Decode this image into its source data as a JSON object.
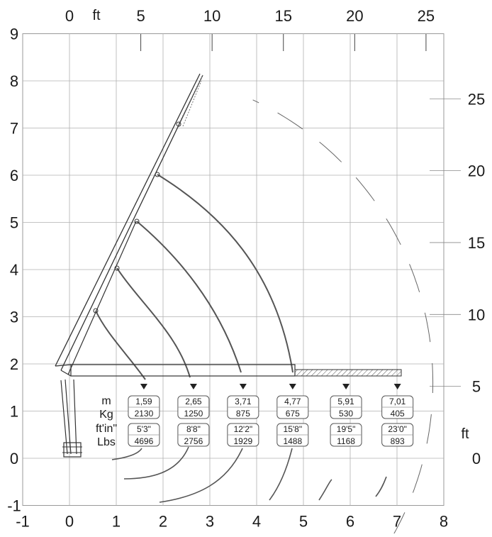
{
  "axes": {
    "x_m_ticks": [
      -1,
      0,
      1,
      2,
      3,
      4,
      5,
      6,
      7,
      8
    ],
    "y_m_ticks": [
      -1,
      0,
      1,
      2,
      3,
      4,
      5,
      6,
      7,
      8,
      9
    ],
    "x_ft_ticks": [
      0,
      5,
      10,
      15,
      20,
      25
    ],
    "y_ft_ticks": [
      0,
      5,
      10,
      15,
      20,
      25
    ],
    "x_ft_unit": "ft",
    "y_ft_unit": "ft"
  },
  "row_labels": [
    "m",
    "Kg",
    "ft'in\"",
    "Lbs"
  ],
  "loads": [
    {
      "reach_m": "1,59",
      "kg": "2130",
      "reach_ftin": "5'3\"",
      "lbs": "4696"
    },
    {
      "reach_m": "2,65",
      "kg": "1250",
      "reach_ftin": "8'8\"",
      "lbs": "2756"
    },
    {
      "reach_m": "3,71",
      "kg": "875",
      "reach_ftin": "12'2\"",
      "lbs": "1929"
    },
    {
      "reach_m": "4,77",
      "kg": "675",
      "reach_ftin": "15'8\"",
      "lbs": "1488"
    },
    {
      "reach_m": "5,91",
      "kg": "530",
      "reach_ftin": "19'5\"",
      "lbs": "1168"
    },
    {
      "reach_m": "7,01",
      "kg": "405",
      "reach_ftin": "23'0\"",
      "lbs": "893"
    }
  ],
  "colors": {
    "grid": "#b0b0b0",
    "line": "#333333",
    "curve": "#555555",
    "dashed": "#666666"
  }
}
